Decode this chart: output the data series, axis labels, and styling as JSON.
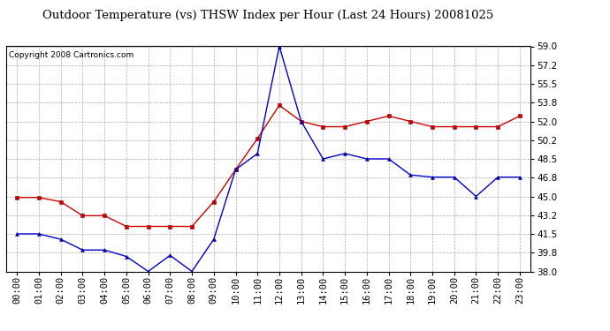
{
  "title": "Outdoor Temperature (vs) THSW Index per Hour (Last 24 Hours) 20081025",
  "copyright": "Copyright 2008 Cartronics.com",
  "hours": [
    "00:00",
    "01:00",
    "02:00",
    "03:00",
    "04:00",
    "05:00",
    "06:00",
    "07:00",
    "08:00",
    "09:00",
    "10:00",
    "11:00",
    "12:00",
    "13:00",
    "14:00",
    "15:00",
    "16:00",
    "17:00",
    "18:00",
    "19:00",
    "20:00",
    "21:00",
    "22:00",
    "23:00"
  ],
  "temp_red": [
    44.9,
    44.9,
    44.5,
    43.2,
    43.2,
    42.2,
    42.2,
    42.2,
    42.2,
    44.5,
    47.5,
    50.4,
    53.5,
    52.0,
    51.5,
    51.5,
    52.0,
    52.5,
    52.0,
    51.5,
    51.5,
    51.5,
    51.5,
    52.5
  ],
  "thsw_blue": [
    41.5,
    41.5,
    41.0,
    40.0,
    40.0,
    39.4,
    38.0,
    39.5,
    38.0,
    41.0,
    47.5,
    49.0,
    59.0,
    52.0,
    48.5,
    49.0,
    48.5,
    48.5,
    47.0,
    46.8,
    46.8,
    45.0,
    46.8,
    46.8
  ],
  "ylim": [
    38.0,
    59.0
  ],
  "yticks": [
    38.0,
    39.8,
    41.5,
    43.2,
    45.0,
    46.8,
    48.5,
    50.2,
    52.0,
    53.8,
    55.5,
    57.2,
    59.0
  ],
  "red_color": "#cc0000",
  "blue_color": "#0000cc",
  "grid_color": "#aaaaaa",
  "bg_color": "#ffffff",
  "title_fontsize": 9.5,
  "copyright_fontsize": 6.5,
  "tick_fontsize": 7.5
}
